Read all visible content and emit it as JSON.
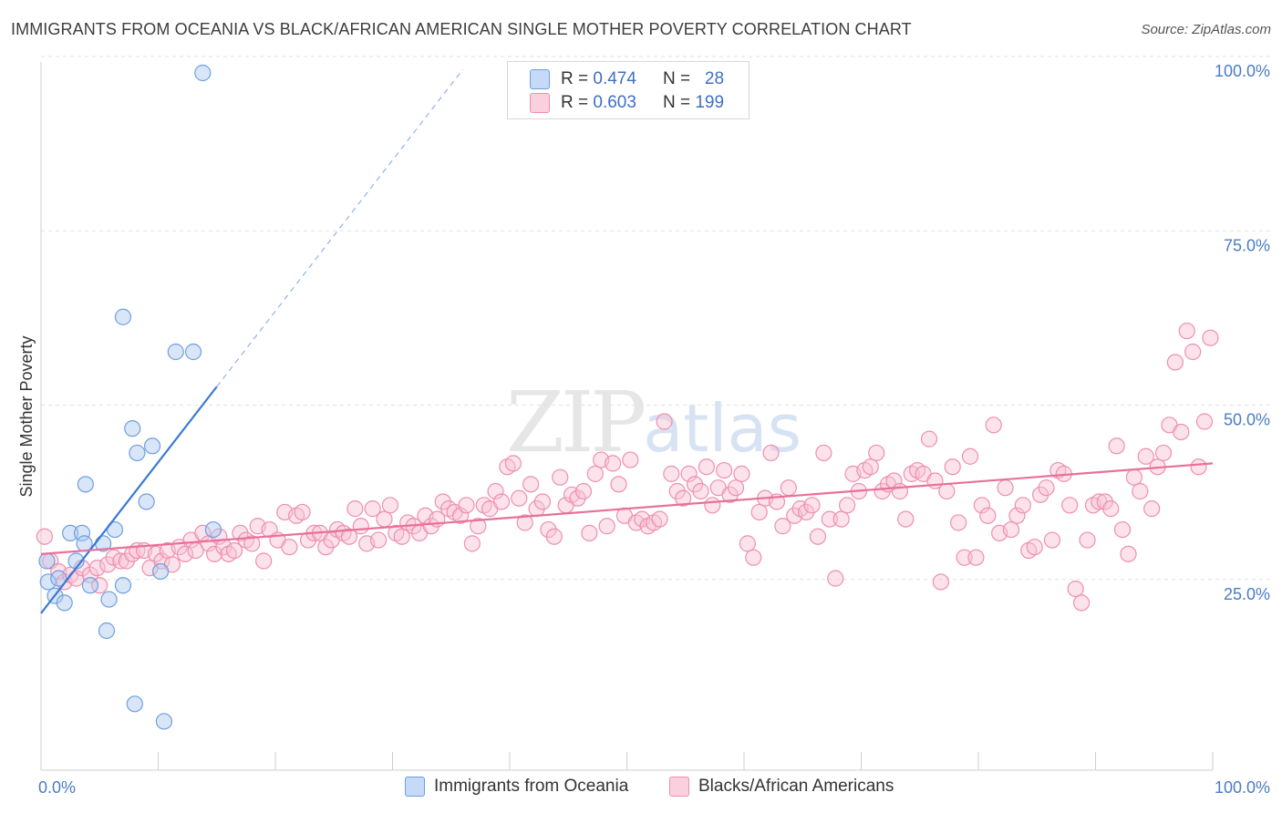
{
  "title": "IMMIGRANTS FROM OCEANIA VS BLACK/AFRICAN AMERICAN SINGLE MOTHER POVERTY CORRELATION CHART",
  "source": "Source: ZipAtlas.com",
  "watermark": {
    "zip": "ZIP",
    "atlas": "atlas"
  },
  "legend": {
    "r_label": "R =",
    "n_label": "N =",
    "rows": [
      {
        "r": "0.474",
        "n": "28",
        "color": "#a9c8f0",
        "border": "#6f9fe0"
      },
      {
        "r": "0.603",
        "n": "199",
        "color": "#f9c0d2",
        "border": "#ee8fae"
      }
    ]
  },
  "bottom_legend": [
    {
      "label": "Immigrants from Oceania",
      "color": "#c4daf6",
      "border": "#6f9fe0"
    },
    {
      "label": "Blacks/African Americans",
      "color": "#fbd0de",
      "border": "#ee8fae"
    }
  ],
  "chart_data": {
    "type": "scatter",
    "ylabel": "Single Mother Poverty",
    "xlabel": "",
    "xlim": [
      0,
      100
    ],
    "ylim": [
      0,
      100
    ],
    "x_tick_labels": [
      {
        "value": 0,
        "label": "0.0%"
      },
      {
        "value": 100,
        "label": "100.0%"
      }
    ],
    "y_tick_labels": [
      {
        "value": 25,
        "label": "25.0%"
      },
      {
        "value": 50,
        "label": "50.0%"
      },
      {
        "value": 75,
        "label": "75.0%"
      },
      {
        "value": 100,
        "label": "100.0%"
      }
    ],
    "grid": true,
    "series": [
      {
        "name": "Immigrants from Oceania",
        "color": "#6f9fe0",
        "fill": "#a9c8f0",
        "trend": {
          "x0": 0,
          "y0": 22.5,
          "x1": 15,
          "y1": 55,
          "dash_to_x": 36
        },
        "points": [
          [
            0.5,
            30
          ],
          [
            0.6,
            27
          ],
          [
            1.2,
            25
          ],
          [
            1.5,
            27.5
          ],
          [
            2.0,
            24
          ],
          [
            2.5,
            34
          ],
          [
            3.0,
            30
          ],
          [
            3.5,
            34
          ],
          [
            3.7,
            32.5
          ],
          [
            4.2,
            26.5
          ],
          [
            5.3,
            32.5
          ],
          [
            5.8,
            24.5
          ],
          [
            5.6,
            20
          ],
          [
            6.3,
            34.5
          ],
          [
            7.0,
            26.5
          ],
          [
            7.0,
            65
          ],
          [
            7.8,
            49
          ],
          [
            8.2,
            45.5
          ],
          [
            8.0,
            9.5
          ],
          [
            9.0,
            38.5
          ],
          [
            9.5,
            46.5
          ],
          [
            10.2,
            28.5
          ],
          [
            10.5,
            7
          ],
          [
            11.5,
            60
          ],
          [
            13.0,
            60
          ],
          [
            13.8,
            100
          ],
          [
            14.7,
            34.5
          ],
          [
            3.8,
            41
          ]
        ]
      },
      {
        "name": "Blacks/African Americans",
        "color": "#ee8fae",
        "fill": "#f9c0d2",
        "trend": {
          "x0": 0,
          "y0": 31,
          "x1": 100,
          "y1": 44
        },
        "points": [
          [
            0.3,
            33.5
          ],
          [
            0.8,
            30
          ],
          [
            1.5,
            28.5
          ],
          [
            2.0,
            27
          ],
          [
            2.5,
            28
          ],
          [
            3.0,
            27.5
          ],
          [
            3.5,
            29
          ],
          [
            4.2,
            28
          ],
          [
            4.8,
            29
          ],
          [
            5.0,
            26.5
          ],
          [
            5.7,
            29.5
          ],
          [
            6.2,
            30.5
          ],
          [
            6.8,
            30
          ],
          [
            7.3,
            30
          ],
          [
            7.8,
            31
          ],
          [
            8.2,
            31.5
          ],
          [
            8.8,
            31.5
          ],
          [
            9.3,
            29
          ],
          [
            9.8,
            31
          ],
          [
            10.3,
            30
          ],
          [
            10.8,
            31.5
          ],
          [
            11.2,
            29.5
          ],
          [
            11.8,
            32
          ],
          [
            12.3,
            31
          ],
          [
            12.8,
            33
          ],
          [
            13.2,
            31.5
          ],
          [
            13.8,
            34
          ],
          [
            14.3,
            32.5
          ],
          [
            14.8,
            31
          ],
          [
            15.2,
            33.5
          ],
          [
            15.6,
            32
          ],
          [
            16.0,
            31
          ],
          [
            16.5,
            31.5
          ],
          [
            17.0,
            34
          ],
          [
            17.5,
            33
          ],
          [
            18.0,
            32.5
          ],
          [
            18.5,
            35
          ],
          [
            19.0,
            30
          ],
          [
            19.5,
            34.5
          ],
          [
            20.2,
            33
          ],
          [
            20.8,
            37
          ],
          [
            21.2,
            32
          ],
          [
            21.8,
            36.5
          ],
          [
            22.3,
            37
          ],
          [
            22.8,
            33
          ],
          [
            23.3,
            34
          ],
          [
            23.8,
            34
          ],
          [
            24.3,
            32
          ],
          [
            24.8,
            33
          ],
          [
            25.3,
            34.5
          ],
          [
            25.8,
            34
          ],
          [
            26.3,
            33.5
          ],
          [
            26.8,
            37.5
          ],
          [
            27.3,
            35
          ],
          [
            27.8,
            32.5
          ],
          [
            28.3,
            37.5
          ],
          [
            28.8,
            33
          ],
          [
            29.3,
            36
          ],
          [
            29.8,
            38
          ],
          [
            30.3,
            34
          ],
          [
            30.8,
            33.5
          ],
          [
            31.3,
            35.5
          ],
          [
            31.8,
            35
          ],
          [
            32.3,
            34
          ],
          [
            32.8,
            36.5
          ],
          [
            33.3,
            35
          ],
          [
            33.8,
            36
          ],
          [
            34.3,
            38.5
          ],
          [
            34.8,
            37.5
          ],
          [
            35.3,
            37
          ],
          [
            35.8,
            36.5
          ],
          [
            36.3,
            38
          ],
          [
            36.8,
            32.5
          ],
          [
            37.3,
            35
          ],
          [
            37.8,
            38
          ],
          [
            38.3,
            37.5
          ],
          [
            38.8,
            40
          ],
          [
            39.3,
            38.5
          ],
          [
            39.8,
            43.5
          ],
          [
            40.3,
            44
          ],
          [
            40.8,
            39
          ],
          [
            41.3,
            35.5
          ],
          [
            41.8,
            41
          ],
          [
            42.3,
            37.5
          ],
          [
            42.8,
            38.5
          ],
          [
            43.3,
            34.5
          ],
          [
            43.8,
            33.5
          ],
          [
            44.3,
            42
          ],
          [
            44.8,
            38
          ],
          [
            45.3,
            39.5
          ],
          [
            45.8,
            39
          ],
          [
            46.3,
            40
          ],
          [
            46.8,
            34
          ],
          [
            47.3,
            42.5
          ],
          [
            47.8,
            44.5
          ],
          [
            48.3,
            35
          ],
          [
            48.8,
            44
          ],
          [
            49.3,
            41
          ],
          [
            49.8,
            36.5
          ],
          [
            50.3,
            44.5
          ],
          [
            50.8,
            35.5
          ],
          [
            51.3,
            36
          ],
          [
            51.8,
            35
          ],
          [
            52.3,
            35.5
          ],
          [
            52.8,
            36
          ],
          [
            53.2,
            50
          ],
          [
            53.8,
            42.5
          ],
          [
            54.3,
            40
          ],
          [
            54.8,
            39
          ],
          [
            55.3,
            42.5
          ],
          [
            55.8,
            41
          ],
          [
            56.3,
            40
          ],
          [
            56.8,
            43.5
          ],
          [
            57.3,
            38
          ],
          [
            57.8,
            40.5
          ],
          [
            58.3,
            43
          ],
          [
            58.8,
            39.5
          ],
          [
            59.3,
            40.5
          ],
          [
            59.8,
            42.5
          ],
          [
            60.3,
            32.5
          ],
          [
            60.8,
            30.5
          ],
          [
            61.3,
            37
          ],
          [
            61.8,
            39
          ],
          [
            62.3,
            45.5
          ],
          [
            62.8,
            38.5
          ],
          [
            63.3,
            35
          ],
          [
            63.8,
            40.5
          ],
          [
            64.3,
            36.5
          ],
          [
            64.8,
            37.5
          ],
          [
            65.3,
            37
          ],
          [
            65.8,
            38
          ],
          [
            66.3,
            33.5
          ],
          [
            66.8,
            45.5
          ],
          [
            67.3,
            36
          ],
          [
            67.8,
            27.5
          ],
          [
            68.3,
            36
          ],
          [
            68.8,
            38
          ],
          [
            69.3,
            42.5
          ],
          [
            69.8,
            40
          ],
          [
            70.3,
            43
          ],
          [
            70.8,
            43.5
          ],
          [
            71.3,
            45.5
          ],
          [
            71.8,
            40
          ],
          [
            72.3,
            41
          ],
          [
            72.8,
            41.5
          ],
          [
            73.3,
            40
          ],
          [
            73.8,
            36
          ],
          [
            74.3,
            42.5
          ],
          [
            74.8,
            43
          ],
          [
            75.3,
            42.5
          ],
          [
            75.8,
            47.5
          ],
          [
            76.3,
            41.5
          ],
          [
            76.8,
            27
          ],
          [
            77.3,
            40
          ],
          [
            77.8,
            43.5
          ],
          [
            78.3,
            35.5
          ],
          [
            78.8,
            30.5
          ],
          [
            79.3,
            45
          ],
          [
            79.8,
            30.5
          ],
          [
            80.3,
            38
          ],
          [
            80.8,
            36.5
          ],
          [
            81.3,
            49.5
          ],
          [
            81.8,
            34
          ],
          [
            82.3,
            40.5
          ],
          [
            82.8,
            34.5
          ],
          [
            83.3,
            36.5
          ],
          [
            83.8,
            38
          ],
          [
            84.3,
            31.5
          ],
          [
            84.8,
            32
          ],
          [
            85.3,
            39.5
          ],
          [
            85.8,
            40.5
          ],
          [
            86.3,
            33
          ],
          [
            86.8,
            43
          ],
          [
            87.3,
            42.5
          ],
          [
            87.8,
            38
          ],
          [
            88.3,
            26
          ],
          [
            88.8,
            24
          ],
          [
            89.3,
            33
          ],
          [
            89.8,
            38
          ],
          [
            90.3,
            38.5
          ],
          [
            90.8,
            38.5
          ],
          [
            91.3,
            37.5
          ],
          [
            91.8,
            46.5
          ],
          [
            92.3,
            34.5
          ],
          [
            92.8,
            31
          ],
          [
            93.3,
            42
          ],
          [
            93.8,
            40
          ],
          [
            94.3,
            45
          ],
          [
            94.8,
            37.5
          ],
          [
            95.3,
            43.5
          ],
          [
            95.8,
            45.5
          ],
          [
            96.3,
            49.5
          ],
          [
            96.8,
            58.5
          ],
          [
            97.3,
            48.5
          ],
          [
            97.8,
            63
          ],
          [
            98.3,
            60
          ],
          [
            98.8,
            43.5
          ],
          [
            99.3,
            50
          ],
          [
            99.8,
            62
          ]
        ]
      }
    ]
  }
}
